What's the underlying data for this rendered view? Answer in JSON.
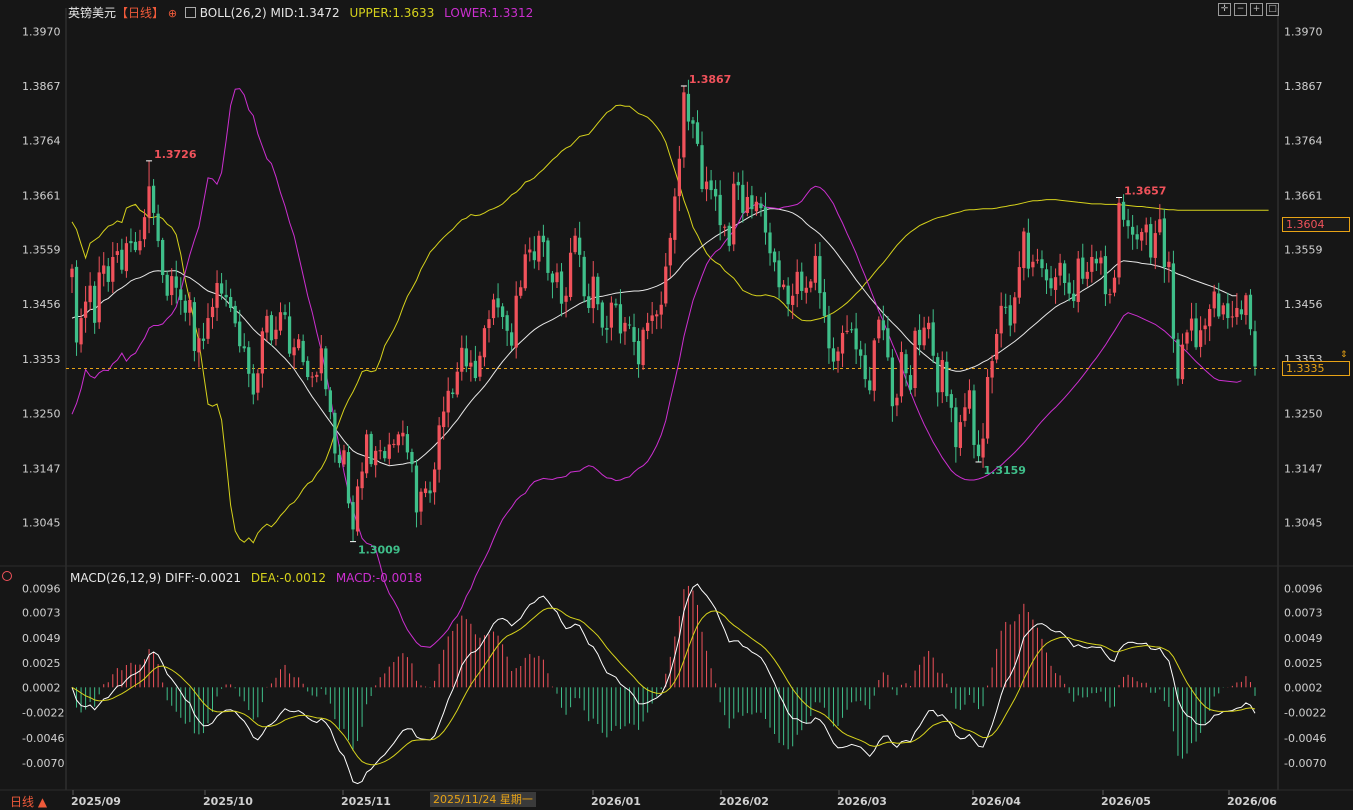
{
  "main_header": {
    "symbol": "英镑美元",
    "period_tag": "【日线】",
    "indicator": "BOLL(26,2)",
    "mid": "MID:1.3472",
    "upper": "UPPER:1.3633",
    "lower": "LOWER:1.3312"
  },
  "macd_header": {
    "title": "MACD(26,12,9)",
    "diff": "DIFF:-0.0021",
    "dea": "DEA:-0.0012",
    "macd": "MACD:-0.0018"
  },
  "footer": {
    "period_button": "日线 ▲",
    "cursor_date": "2025/11/24 星期一"
  },
  "price_tags": {
    "current": "1.3335",
    "marker": "1.3604"
  },
  "colors": {
    "up": "#f0525b",
    "down": "#3fbf8a",
    "upper_band": "#d6d21c",
    "mid_band": "#e8e8e8",
    "lower_band": "#cc2fd0",
    "diff_line": "#ffffff",
    "dea_line": "#d6d21c",
    "dashed_current": "#e8a316",
    "background": "#161616"
  },
  "chart_data": [
    {
      "type": "candlestick",
      "name": "英镑美元 日线",
      "y_ticks": [
        "1.3970",
        "1.3867",
        "1.3764",
        "1.3661",
        "1.3559",
        "1.3456",
        "1.3353",
        "1.3250",
        "1.3147",
        "1.3045"
      ],
      "ylim": [
        1.2965,
        1.3995
      ],
      "x_labels": [
        "2025/09",
        "2025/10",
        "2025/11",
        "2026/01",
        "2026/02",
        "2026/03",
        "2026/04",
        "2026/05",
        "2026/06"
      ],
      "current_price": 1.3335,
      "annotations": [
        {
          "label": "1.3726",
          "value": 1.3726,
          "kind": "high"
        },
        {
          "label": "1.3009",
          "value": 1.3009,
          "kind": "low"
        },
        {
          "label": "1.3867",
          "value": 1.3867,
          "kind": "high"
        },
        {
          "label": "1.3159",
          "value": 1.3159,
          "kind": "low"
        },
        {
          "label": "1.3657",
          "value": 1.3657,
          "kind": "high"
        }
      ],
      "close": [
        1.3523,
        1.3384,
        1.343,
        1.3461,
        1.3491,
        1.3421,
        1.3516,
        1.3529,
        1.3498,
        1.3545,
        1.3556,
        1.3521,
        1.3571,
        1.3571,
        1.3558,
        1.3575,
        1.362,
        1.3678,
        1.3628,
        1.3575,
        1.3511,
        1.3472,
        1.3509,
        1.3487,
        1.3464,
        1.344,
        1.3464,
        1.3368,
        1.3392,
        1.3387,
        1.343,
        1.3451,
        1.3496,
        1.3476,
        1.3469,
        1.3449,
        1.342,
        1.3377,
        1.3373,
        1.3325,
        1.3286,
        1.3326,
        1.3405,
        1.3434,
        1.3388,
        1.3408,
        1.3441,
        1.3436,
        1.3363,
        1.3375,
        1.339,
        1.3347,
        1.3319,
        1.332,
        1.3323,
        1.3373,
        1.3296,
        1.3253,
        1.3175,
        1.3157,
        1.3181,
        1.3081,
        1.3032,
        1.3113,
        1.3141,
        1.3211,
        1.3155,
        1.318,
        1.3181,
        1.3166,
        1.3192,
        1.3193,
        1.3211,
        1.3214,
        1.3177,
        1.3155,
        1.3064,
        1.3103,
        1.3109,
        1.31,
        1.3145,
        1.3228,
        1.3254,
        1.3293,
        1.3287,
        1.3329,
        1.3374,
        1.3339,
        1.3346,
        1.3317,
        1.3359,
        1.3411,
        1.3428,
        1.3465,
        1.345,
        1.3432,
        1.3406,
        1.3378,
        1.3472,
        1.3488,
        1.355,
        1.3559,
        1.3539,
        1.3585,
        1.3573,
        1.3515,
        1.3497,
        1.3516,
        1.3457,
        1.3472,
        1.3553,
        1.3585,
        1.3549,
        1.3471,
        1.3449,
        1.3508,
        1.3456,
        1.3412,
        1.3408,
        1.3459,
        1.3454,
        1.3401,
        1.3421,
        1.3417,
        1.3385,
        1.3343,
        1.3408,
        1.3421,
        1.3435,
        1.3437,
        1.3455,
        1.3527,
        1.3581,
        1.3659,
        1.373,
        1.3855,
        1.38,
        1.3796,
        1.3758,
        1.3673,
        1.3687,
        1.3671,
        1.3659,
        1.3605,
        1.3602,
        1.3566,
        1.3683,
        1.368,
        1.3628,
        1.3658,
        1.3635,
        1.3649,
        1.3637,
        1.3591,
        1.3552,
        1.3535,
        1.3488,
        1.3493,
        1.3456,
        1.3472,
        1.3517,
        1.3481,
        1.3487,
        1.3499,
        1.3547,
        1.3477,
        1.3434,
        1.3373,
        1.3348,
        1.3367,
        1.3402,
        1.3406,
        1.3408,
        1.3371,
        1.3359,
        1.3315,
        1.3294,
        1.3388,
        1.3427,
        1.3407,
        1.3356,
        1.3264,
        1.328,
        1.3366,
        1.3326,
        1.3295,
        1.3406,
        1.3379,
        1.3412,
        1.3421,
        1.3359,
        1.329,
        1.3351,
        1.3283,
        1.3261,
        1.3187,
        1.3234,
        1.3262,
        1.3294,
        1.3191,
        1.317,
        1.3203,
        1.3319,
        1.3349,
        1.34,
        1.3453,
        1.3451,
        1.3416,
        1.3469,
        1.3526,
        1.3593,
        1.3523,
        1.3536,
        1.354,
        1.3524,
        1.3501,
        1.3486,
        1.3507,
        1.3534,
        1.3496,
        1.3476,
        1.3462,
        1.3542,
        1.3504,
        1.3517,
        1.3545,
        1.3533,
        1.3544,
        1.3475,
        1.3475,
        1.3506,
        1.3647,
        1.3615,
        1.3603,
        1.3587,
        1.3578,
        1.3592,
        1.3606,
        1.3544,
        1.359,
        1.3616,
        1.3526,
        1.3536,
        1.3391,
        1.3316,
        1.338,
        1.3403,
        1.3429,
        1.3375,
        1.3407,
        1.3416,
        1.3447,
        1.348,
        1.3433,
        1.3454,
        1.343,
        1.3433,
        1.3449,
        1.3437,
        1.3473,
        1.3409,
        1.3339
      ],
      "boll_upper": [
        1.3611,
        1.3597,
        1.3569,
        1.3543,
        1.3571,
        1.3577,
        1.3583,
        1.3594,
        1.3603,
        1.3606,
        1.3613,
        1.361,
        1.3637,
        1.3641,
        1.3644,
        1.3633,
        1.3628,
        1.3619,
        1.362,
        1.3622,
        1.3617,
        1.3607,
        1.3601,
        1.3587,
        1.355,
        1.3501,
        1.3463,
        1.3423,
        1.3386,
        1.3327,
        1.3268,
        1.3264,
        1.3268,
        1.3238,
        1.3162,
        1.3078,
        1.3029,
        1.3014,
        1.3008,
        1.3016,
        1.3007,
        1.3025,
        1.3035,
        1.3042,
        1.3037,
        1.3046,
        1.3058,
        1.3067,
        1.3078,
        1.3083,
        1.3094,
        1.3108,
        1.3118,
        1.3123,
        1.3137,
        1.3147,
        1.3163,
        1.3186,
        1.3213,
        1.3235,
        1.3258,
        1.3276,
        1.3291,
        1.3309,
        1.3329,
        1.3332,
        1.3329,
        1.3331,
        1.3351,
        1.3378,
        1.3393,
        1.3408,
        1.3426,
        1.345,
        1.3471,
        1.3485,
        1.3501,
        1.3522,
        1.3537,
        1.3554,
        1.3563,
        1.3573,
        1.3582,
        1.359,
        1.3597,
        1.3607,
        1.3615,
        1.3618,
        1.3625,
        1.3623,
        1.3624,
        1.3628,
        1.3633,
        1.3636,
        1.364,
        1.3645,
        1.3653,
        1.3662,
        1.3667,
        1.3675,
        1.3686,
        1.3689,
        1.3694,
        1.3703,
        1.371,
        1.3719,
        1.3728,
        1.3735,
        1.3744,
        1.375,
        1.3754,
        1.3763,
        1.3772,
        1.3774,
        1.3776,
        1.3786,
        1.3797,
        1.3807,
        1.3817,
        1.3822,
        1.383,
        1.3831,
        1.3829,
        1.3829,
        1.3822,
        1.3815,
        1.3812,
        1.3808,
        1.38,
        1.379,
        1.3778,
        1.3761,
        1.3734,
        1.3708,
        1.3681,
        1.3652,
        1.3629,
        1.3601,
        1.3586,
        1.3568,
        1.3552,
        1.3542,
        1.3535,
        1.353,
        1.3519,
        1.3512,
        1.3505,
        1.3494,
        1.3482,
        1.3478,
        1.3474,
        1.3472,
        1.3472,
        1.3474,
        1.3472,
        1.347,
        1.3465,
        1.3457,
        1.3447,
        1.3439,
        1.3432,
        1.3426,
        1.3425,
        1.3425,
        1.3427,
        1.3429,
        1.3432,
        1.3436,
        1.344,
        1.3446,
        1.3452,
        1.3459,
        1.3467,
        1.3476,
        1.3484,
        1.3495,
        1.3504,
        1.3515,
        1.3525,
        1.3534,
        1.3545,
        1.3556,
        1.3567,
        1.3576,
        1.3585,
        1.3592,
        1.3598,
        1.3604,
        1.3608,
        1.3612,
        1.3616,
        1.3619,
        1.3621,
        1.3623,
        1.3626,
        1.3628,
        1.363,
        1.3633,
        1.3634,
        1.3634,
        1.3635,
        1.3636,
        1.3636,
        1.3636,
        1.3637,
        1.3639,
        1.364,
        1.3642,
        1.3643,
        1.3645,
        1.3647,
        1.3649,
        1.3651,
        1.3651,
        1.3652,
        1.3653,
        1.3653,
        1.3653,
        1.3652,
        1.3651,
        1.365,
        1.3649,
        1.3648,
        1.3647,
        1.3646,
        1.3645,
        1.3645,
        1.3645,
        1.3644,
        1.3644,
        1.3644,
        1.3643,
        1.3643,
        1.3642,
        1.3641,
        1.364,
        1.364,
        1.3639,
        1.3638,
        1.3637,
        1.3636,
        1.3635,
        1.3634,
        1.3634,
        1.3633,
        1.3633,
        1.3633,
        1.3633,
        1.3633,
        1.3633,
        1.3633,
        1.3633,
        1.3633,
        1.3633,
        1.3633,
        1.3633,
        1.3633,
        1.3633,
        1.3633,
        1.3633,
        1.3633,
        1.3633,
        1.3633,
        1.3633,
        1.3633
      ],
      "boll_mid": [
        1.343,
        1.3433,
        1.3433,
        1.3438,
        1.3446,
        1.3447,
        1.3455,
        1.3463,
        1.3467,
        1.3475,
        1.3482,
        1.3487,
        1.3493,
        1.35,
        1.3504,
        1.3506,
        1.351,
        1.3515,
        1.3518,
        1.3519,
        1.3518,
        1.3518,
        1.3519,
        1.3519,
        1.3515,
        1.3509,
        1.3506,
        1.35,
        1.3494,
        1.3487,
        1.3481,
        1.3478,
        1.3475,
        1.3471,
        1.3463,
        1.3454,
        1.3445,
        1.3438,
        1.3429,
        1.3419,
        1.3409,
        1.3401,
        1.3394,
        1.3386,
        1.3379,
        1.3371,
        1.3362,
        1.3354,
        1.3344,
        1.3334,
        1.3321,
        1.3309,
        1.3295,
        1.3282,
        1.327,
        1.3258,
        1.3246,
        1.3234,
        1.3222,
        1.3211,
        1.3199,
        1.3189,
        1.318,
        1.3175,
        1.3172,
        1.3169,
        1.3166,
        1.3163,
        1.3158,
        1.3155,
        1.3152,
        1.3153,
        1.3154,
        1.3155,
        1.3157,
        1.3158,
        1.316,
        1.3167,
        1.3174,
        1.3182,
        1.319,
        1.3199,
        1.3208,
        1.3217,
        1.3228,
        1.3238,
        1.325,
        1.3262,
        1.3273,
        1.3283,
        1.3292,
        1.3302,
        1.3313,
        1.3325,
        1.3337,
        1.3348,
        1.3358,
        1.3368,
        1.3377,
        1.3385,
        1.3393,
        1.3401,
        1.3408,
        1.3414,
        1.3419,
        1.3423,
        1.3427,
        1.3432,
        1.3437,
        1.3441,
        1.3447,
        1.3452,
        1.3457,
        1.3461,
        1.3464,
        1.3468,
        1.347,
        1.3471,
        1.3473,
        1.3475,
        1.3477,
        1.3478,
        1.3479,
        1.348,
        1.3481,
        1.3481,
        1.3482,
        1.3484,
        1.3487,
        1.349,
        1.3494,
        1.3499,
        1.3505,
        1.3513,
        1.3523,
        1.3534,
        1.3542,
        1.355,
        1.3558,
        1.3565,
        1.3572,
        1.3578,
        1.3584,
        1.3589,
        1.3594,
        1.3598,
        1.3603,
        1.3608,
        1.3613,
        1.3618,
        1.3623,
        1.3627,
        1.3631,
        1.3634,
        1.3636,
        1.3636,
        1.3635,
        1.3633,
        1.3631,
        1.3628,
        1.3623,
        1.3617,
        1.3608,
        1.3601,
        1.3595,
        1.3588,
        1.3579,
        1.357,
        1.356,
        1.3549,
        1.3537,
        1.3526,
        1.3514,
        1.3502,
        1.3491,
        1.348,
        1.3469,
        1.3459,
        1.3449,
        1.3439,
        1.343,
        1.3421,
        1.3413,
        1.3404,
        1.3394,
        1.3385,
        1.3377,
        1.3369,
        1.3362,
        1.3355,
        1.3348,
        1.3343,
        1.3338,
        1.3335,
        1.3332,
        1.333,
        1.333,
        1.3332,
        1.3335,
        1.3338,
        1.3342,
        1.3347,
        1.3351,
        1.3357,
        1.3362,
        1.3368,
        1.3374,
        1.338,
        1.3386,
        1.3393,
        1.34,
        1.3408,
        1.3415,
        1.3422,
        1.343,
        1.3437,
        1.3444,
        1.3451,
        1.3456,
        1.346,
        1.3465,
        1.347,
        1.3476,
        1.3482,
        1.3487,
        1.3492,
        1.3498,
        1.3504,
        1.3512,
        1.3519,
        1.3527,
        1.3534,
        1.3538,
        1.3537,
        1.3536,
        1.3535,
        1.3533,
        1.3532,
        1.3531,
        1.3529,
        1.3527,
        1.3524,
        1.3521,
        1.3517,
        1.3513,
        1.351,
        1.3507,
        1.3503,
        1.35,
        1.3497,
        1.3494,
        1.3491,
        1.3488,
        1.3484,
        1.348,
        1.3476,
        1.3472,
        1.3472
      ],
      "boll_lower": [
        1.3249,
        1.3269,
        1.3297,
        1.3333,
        1.3321,
        1.3317,
        1.3327,
        1.3332,
        1.3331,
        1.3344,
        1.3351,
        1.3364,
        1.3349,
        1.3359,
        1.3364,
        1.3379,
        1.3392,
        1.3411,
        1.3416,
        1.3416,
        1.3419,
        1.3429,
        1.3437,
        1.3451,
        1.348,
        1.3517,
        1.3549,
        1.3577,
        1.3602,
        1.3647,
        1.3694,
        1.3692,
        1.3682,
        1.3704,
        1.3764,
        1.383,
        1.3861,
        1.3862,
        1.385,
        1.3822,
        1.3811,
        1.3777,
        1.3753,
        1.373,
        1.3721,
        1.3696,
        1.3666,
        1.3641,
        1.361,
        1.3585,
        1.3548,
        1.351,
        1.3472,
        1.3441,
        1.3403,
        1.3369,
        1.3329,
        1.3282,
        1.3231,
        1.3187,
        1.314,
        1.3102,
        1.3069,
        1.3041,
        1.3015,
        1.3006,
        1.3003,
        1.2995,
        1.2965,
        1.2932,
        1.2911,
        1.2898,
        1.2882,
        1.286,
        1.2843,
        1.2831,
        1.2819,
        1.2812,
        1.2811,
        1.281,
        1.2817,
        1.2825,
        1.2834,
        1.2844,
        1.2859,
        1.2869,
        1.2885,
        1.2906,
        1.2921,
        1.2943,
        1.296,
        1.2976,
        1.2993,
        1.3014,
        1.3034,
        1.3051,
        1.3063,
        1.3074,
        1.3087,
        1.3095,
        1.31,
        1.3113,
        1.3122,
        1.3125,
        1.3128,
        1.3127,
        1.3126,
        1.3129,
        1.313,
        1.3132,
        1.314,
        1.3141,
        1.3142,
        1.3148,
        1.3152,
        1.315,
        1.3143,
        1.3135,
        1.3129,
        1.3128,
        1.3124,
        1.3125,
        1.3129,
        1.3131,
        1.314,
        1.3147,
        1.3152,
        1.316,
        1.3174,
        1.319,
        1.321,
        1.3237,
        1.3276,
        1.3312,
        1.3351,
        1.3395,
        1.3429,
        1.3463,
        1.3486,
        1.3509,
        1.3531,
        1.3545,
        1.3555,
        1.3561,
        1.3573,
        1.3584,
        1.3594,
        1.3609,
        1.3626,
        1.3634,
        1.364,
        1.3645,
        1.3645,
        1.3639,
        1.3638,
        1.3637,
        1.3636,
        1.3639,
        1.364,
        1.3642,
        1.3644,
        1.365,
        1.3662,
        1.3673,
        1.3678,
        1.3676,
        1.3669,
        1.3658,
        1.3645,
        1.3626,
        1.3609,
        1.3589,
        1.3571,
        1.3552,
        1.3529,
        1.3509,
        1.3487,
        1.3465,
        1.3443,
        1.3424,
        1.3402,
        1.3381,
        1.3361,
        1.3339,
        1.3314,
        1.3291,
        1.3269,
        1.3249,
        1.323,
        1.3213,
        1.3196,
        1.3182,
        1.3167,
        1.3155,
        1.3143,
        1.3135,
        1.313,
        1.3126,
        1.3125,
        1.3125,
        1.3127,
        1.313,
        1.3134,
        1.314,
        1.3147,
        1.3153,
        1.3161,
        1.3169,
        1.3177,
        1.3186,
        1.3195,
        1.3205,
        1.3215,
        1.3226,
        1.3236,
        1.3245,
        1.3254,
        1.3262,
        1.3271,
        1.328,
        1.329,
        1.33,
        1.331,
        1.3321,
        1.3332,
        1.3344,
        1.3355,
        1.3367,
        1.3379,
        1.3393,
        1.3406,
        1.342,
        1.3434,
        1.344,
        1.3437,
        1.3434,
        1.343,
        1.3426,
        1.3422,
        1.3418,
        1.3412,
        1.3406,
        1.3398,
        1.339,
        1.3382,
        1.3374,
        1.3366,
        1.3357,
        1.3348,
        1.334,
        1.3332,
        1.3324,
        1.3317,
        1.3313,
        1.3312,
        1.3311,
        1.331,
        1.3309,
        1.3312
      ]
    },
    {
      "type": "macd",
      "name": "MACD(26,12,9)",
      "y_ticks": [
        "0.0096",
        "0.0073",
        "0.0049",
        "0.0025",
        "0.0002",
        "-0.0022",
        "-0.0046",
        "-0.0070"
      ],
      "ylim": [
        -0.0086,
        0.0102
      ],
      "diff_last": -0.0021,
      "dea_last": -0.0012,
      "macd_last": -0.0018
    }
  ]
}
